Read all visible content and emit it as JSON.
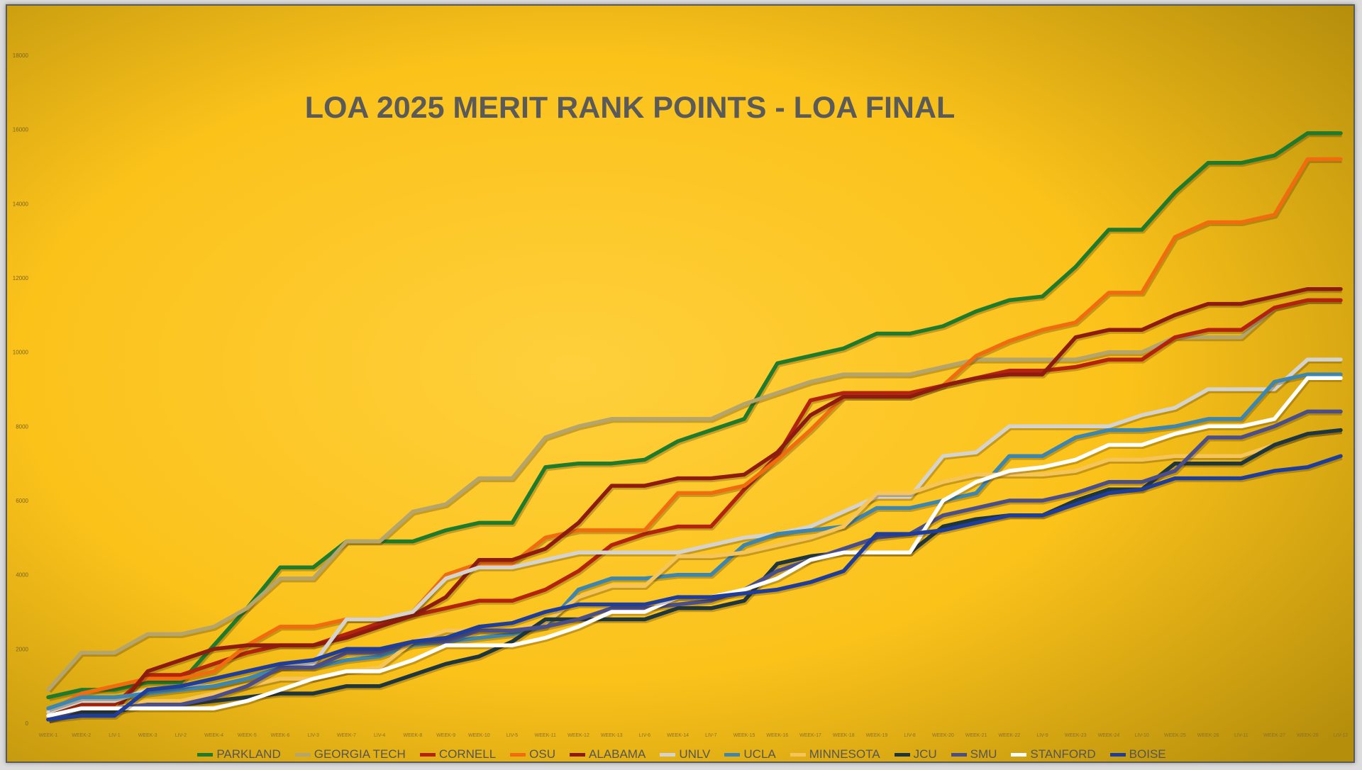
{
  "chart_data": {
    "type": "line",
    "title": "LOA 2025 MERIT RANK POINTS - LOA FINAL",
    "xlabel": "",
    "ylabel": "",
    "ylim": [
      0,
      18000
    ],
    "yticks": [
      0,
      2000,
      4000,
      6000,
      8000,
      10000,
      12000,
      14000,
      16000,
      18000
    ],
    "grid": false,
    "legend": "bottom",
    "x": [
      "WEEK-1",
      "WEEK-2",
      "LIV-1",
      "WEEK-3",
      "LIV-2",
      "WEEK-4",
      "WEEK-5",
      "WEEK-6",
      "LIV-3",
      "WEEK-7",
      "LIV-4",
      "WEEK-8",
      "WEEK-9",
      "WEEK-10",
      "LIV-5",
      "WEEK-11",
      "WEEK-12",
      "WEEK-13",
      "LIV-6",
      "WEEK-14",
      "LIV-7",
      "WEEK-15",
      "WEEK-16",
      "WEEK-17",
      "WEEK-18",
      "WEEK-19",
      "LIV-8",
      "WEEK-20",
      "WEEK-21",
      "WEEK-22",
      "LIV-9",
      "WEEK-23",
      "WEEK-24",
      "LIV-10",
      "WEEK-25",
      "WEEK-26",
      "LIV-11",
      "WEEK-27",
      "WEEK-28",
      "LIV-12"
    ],
    "series": [
      {
        "name": "PARKLAND",
        "color": "#1e7b2e",
        "values": [
          700,
          900,
          900,
          1100,
          1100,
          2100,
          3100,
          4200,
          4200,
          4900,
          4900,
          4900,
          5200,
          5400,
          5400,
          6900,
          7000,
          7000,
          7100,
          7600,
          7900,
          8200,
          9700,
          9900,
          10100,
          10500,
          10500,
          10700,
          11100,
          11400,
          11500,
          12300,
          13300,
          13300,
          14300,
          15100,
          15100,
          15300,
          15900,
          15900
        ]
      },
      {
        "name": "GEORGIA TECH",
        "color": "#b4a46e",
        "values": [
          900,
          1900,
          1900,
          2400,
          2400,
          2600,
          3100,
          3900,
          3900,
          4900,
          4900,
          5700,
          5900,
          6600,
          6600,
          7700,
          8000,
          8200,
          8200,
          8200,
          8200,
          8600,
          8900,
          9200,
          9400,
          9400,
          9400,
          9600,
          9800,
          9800,
          9800,
          9800,
          10000,
          10000,
          10400,
          10400,
          10400,
          11200,
          11400,
          11400
        ]
      },
      {
        "name": "CORNELL",
        "color": "#b3230e",
        "values": [
          200,
          500,
          500,
          1300,
          1300,
          1600,
          1900,
          2100,
          2100,
          2400,
          2700,
          2900,
          3100,
          3300,
          3300,
          3600,
          4100,
          4800,
          5100,
          5300,
          5300,
          6300,
          7200,
          8700,
          8900,
          8900,
          8900,
          9100,
          9300,
          9500,
          9500,
          9600,
          9800,
          9800,
          10400,
          10600,
          10600,
          11200,
          11400,
          11400
        ]
      },
      {
        "name": "OSU",
        "color": "#f06c0f",
        "values": [
          300,
          800,
          1000,
          1200,
          1200,
          1400,
          2100,
          2600,
          2600,
          2800,
          2800,
          3000,
          4000,
          4300,
          4300,
          5000,
          5200,
          5200,
          5200,
          6200,
          6200,
          6400,
          7100,
          7900,
          8800,
          8800,
          8800,
          9100,
          9900,
          10300,
          10600,
          10800,
          11600,
          11600,
          13100,
          13500,
          13500,
          13700,
          15200,
          15200
        ]
      },
      {
        "name": "ALABAMA",
        "color": "#8e1b12",
        "values": [
          100,
          300,
          300,
          1400,
          1700,
          2000,
          2100,
          2100,
          2100,
          2300,
          2600,
          2900,
          3400,
          4400,
          4400,
          4700,
          5400,
          6400,
          6400,
          6600,
          6600,
          6700,
          7300,
          8300,
          8800,
          8800,
          8800,
          9100,
          9300,
          9400,
          9400,
          10400,
          10600,
          10600,
          11000,
          11300,
          11300,
          11500,
          11700,
          11700
        ]
      },
      {
        "name": "UNLV",
        "color": "#d4d3cf",
        "values": [
          300,
          600,
          600,
          900,
          1000,
          1000,
          1200,
          1500,
          1600,
          2800,
          2800,
          3000,
          3900,
          4200,
          4200,
          4400,
          4600,
          4600,
          4600,
          4600,
          4800,
          5000,
          5100,
          5300,
          5700,
          6100,
          6100,
          7200,
          7300,
          8000,
          8000,
          8000,
          8000,
          8300,
          8500,
          9000,
          9000,
          9000,
          9800,
          9800
        ]
      },
      {
        "name": "UCLA",
        "color": "#3c86b0",
        "values": [
          400,
          700,
          700,
          800,
          900,
          1000,
          1200,
          1500,
          1500,
          1700,
          1800,
          2100,
          2200,
          2300,
          2400,
          2600,
          3600,
          3900,
          3900,
          4000,
          4000,
          4800,
          5100,
          5200,
          5300,
          5800,
          5800,
          6000,
          6200,
          7200,
          7200,
          7700,
          7900,
          7900,
          8000,
          8200,
          8200,
          9200,
          9400,
          9400
        ]
      },
      {
        "name": "MINNESOTA",
        "color": "#f5c55a",
        "values": [
          200,
          400,
          400,
          600,
          600,
          800,
          1000,
          1200,
          1200,
          1400,
          1500,
          2200,
          2500,
          2500,
          2500,
          2700,
          3400,
          3700,
          3700,
          4500,
          4500,
          4600,
          4800,
          5000,
          5300,
          6200,
          6200,
          6500,
          6700,
          6700,
          6700,
          6800,
          7100,
          7100,
          7200,
          7200,
          7200,
          7500,
          7800,
          7900
        ]
      },
      {
        "name": "JCU",
        "color": "#1d3640",
        "values": [
          100,
          300,
          300,
          500,
          500,
          600,
          700,
          800,
          800,
          1000,
          1000,
          1300,
          1600,
          1800,
          2200,
          2800,
          2800,
          2800,
          2800,
          3100,
          3100,
          3300,
          4300,
          4500,
          4600,
          4600,
          4600,
          5300,
          5500,
          5600,
          5600,
          6000,
          6300,
          6300,
          7000,
          7000,
          7000,
          7500,
          7800,
          7900
        ]
      },
      {
        "name": "SMU",
        "color": "#4a4f8c",
        "values": [
          100,
          400,
          400,
          500,
          500,
          700,
          1000,
          1500,
          1500,
          1900,
          1900,
          2200,
          2200,
          2500,
          2500,
          2600,
          2800,
          3100,
          3100,
          3200,
          3300,
          3600,
          4100,
          4400,
          4700,
          5000,
          5100,
          5600,
          5800,
          6000,
          6000,
          6200,
          6500,
          6500,
          6800,
          7700,
          7700,
          8000,
          8400,
          8400
        ]
      },
      {
        "name": "STANFORD",
        "color": "#ffffff",
        "values": [
          200,
          400,
          400,
          400,
          400,
          400,
          600,
          900,
          1200,
          1400,
          1400,
          1700,
          2100,
          2100,
          2100,
          2300,
          2600,
          3000,
          3000,
          3400,
          3400,
          3600,
          3900,
          4400,
          4600,
          4600,
          4600,
          6000,
          6500,
          6800,
          6900,
          7100,
          7500,
          7500,
          7800,
          8000,
          8000,
          8200,
          9300,
          9300
        ]
      },
      {
        "name": "BOISE",
        "color": "#1f3d9a",
        "values": [
          100,
          200,
          200,
          900,
          1000,
          1200,
          1400,
          1600,
          1700,
          2000,
          2000,
          2200,
          2300,
          2600,
          2700,
          3000,
          3200,
          3200,
          3200,
          3400,
          3400,
          3500,
          3600,
          3800,
          4100,
          5100,
          5100,
          5200,
          5400,
          5600,
          5600,
          5900,
          6200,
          6300,
          6600,
          6600,
          6600,
          6800,
          6900,
          7200
        ]
      }
    ]
  }
}
